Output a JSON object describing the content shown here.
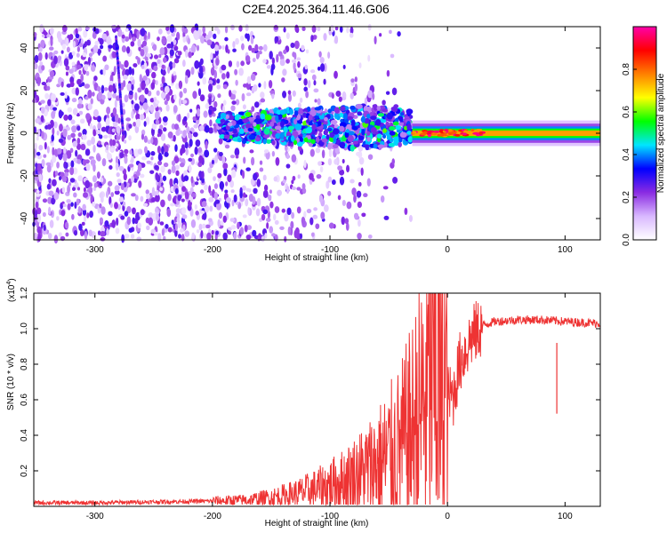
{
  "title": "C2E4.2025.364.11.46.G06",
  "chart_data": [
    {
      "type": "heatmap",
      "title": "C2E4.2025.364.11.46.G06",
      "xlabel": "Height of straight line (km)",
      "ylabel": "Frequency (Hz)",
      "xlim": [
        -352,
        130
      ],
      "ylim": [
        -50,
        50
      ],
      "xticks": [
        -300,
        -200,
        -100,
        0,
        100
      ],
      "xtick_labels": [
        "-300",
        "-200",
        "-100",
        "0",
        "100"
      ],
      "yticks": [
        -40,
        -20,
        0,
        20,
        40
      ],
      "ytick_labels": [
        "-40",
        "-20",
        "0",
        "20",
        "40"
      ],
      "colorbar": {
        "label": "Normalized spectral amplitude",
        "range": [
          0,
          1
        ],
        "ticks": [
          0.0,
          0.2,
          0.4,
          0.6,
          0.8
        ],
        "tick_labels": [
          "0.0",
          "0.2",
          "0.4",
          "0.6",
          "0.8"
        ],
        "colors": [
          "#ffffff",
          "#d9b8ff",
          "#8a2be2",
          "#0000ff",
          "#00e5ff",
          "#00ff00",
          "#ffff00",
          "#ff8000",
          "#ff0000",
          "#ff00aa"
        ]
      },
      "features": [
        {
          "name": "noise-band",
          "x_range": [
            -352,
            -150
          ],
          "freq_range": [
            -50,
            50
          ],
          "amplitude": 0.15
        },
        {
          "name": "steep-trace",
          "x_start": -282,
          "freq_start": 45,
          "x_end": -276,
          "freq_end": 0,
          "amplitude": 0.25
        },
        {
          "name": "dispersed-signal",
          "x_range": [
            -195,
            -30
          ],
          "freq_center": 3,
          "freq_halfwidth": 10,
          "amplitude": 0.35
        },
        {
          "name": "main-signal",
          "x_range": [
            -30,
            130
          ],
          "freq_center": 0,
          "amplitude": 0.9
        }
      ]
    },
    {
      "type": "line",
      "xlabel": "Height of straight line (km)",
      "ylabel": "SNR (10 * v/v)",
      "scale_label": "(x10",
      "scale_exponent": "4",
      "scale_close": ")",
      "xlim": [
        -352,
        130
      ],
      "ylim": [
        0,
        1.2
      ],
      "xticks": [
        -300,
        -200,
        -100,
        0,
        100
      ],
      "xtick_labels": [
        "-300",
        "-200",
        "-100",
        "0",
        "100"
      ],
      "yticks": [
        0.2,
        0.4,
        0.6,
        0.8,
        1.0,
        1.2
      ],
      "ytick_labels": [
        "0.2",
        "0.4",
        "0.6",
        "0.8",
        "1.0",
        "1.2"
      ],
      "color": "#ee3333",
      "series": [
        {
          "name": "SNR trend",
          "x": [
            -352,
            -300,
            -250,
            -200,
            -170,
            -150,
            -130,
            -110,
            -90,
            -70,
            -55,
            -40,
            -30,
            -22,
            -15,
            -10,
            -5,
            0,
            5,
            10,
            20,
            30,
            40,
            60,
            80,
            100,
            130
          ],
          "y": [
            0.02,
            0.02,
            0.025,
            0.03,
            0.035,
            0.05,
            0.07,
            0.1,
            0.14,
            0.2,
            0.26,
            0.33,
            0.42,
            0.55,
            0.7,
            0.8,
            0.72,
            0.62,
            0.62,
            0.8,
            0.95,
            1.02,
            1.04,
            1.05,
            1.05,
            1.04,
            1.03
          ]
        },
        {
          "name": "spikes",
          "x": [
            -10,
            93
          ],
          "y": [
            1.2,
            0.92
          ]
        }
      ]
    }
  ]
}
